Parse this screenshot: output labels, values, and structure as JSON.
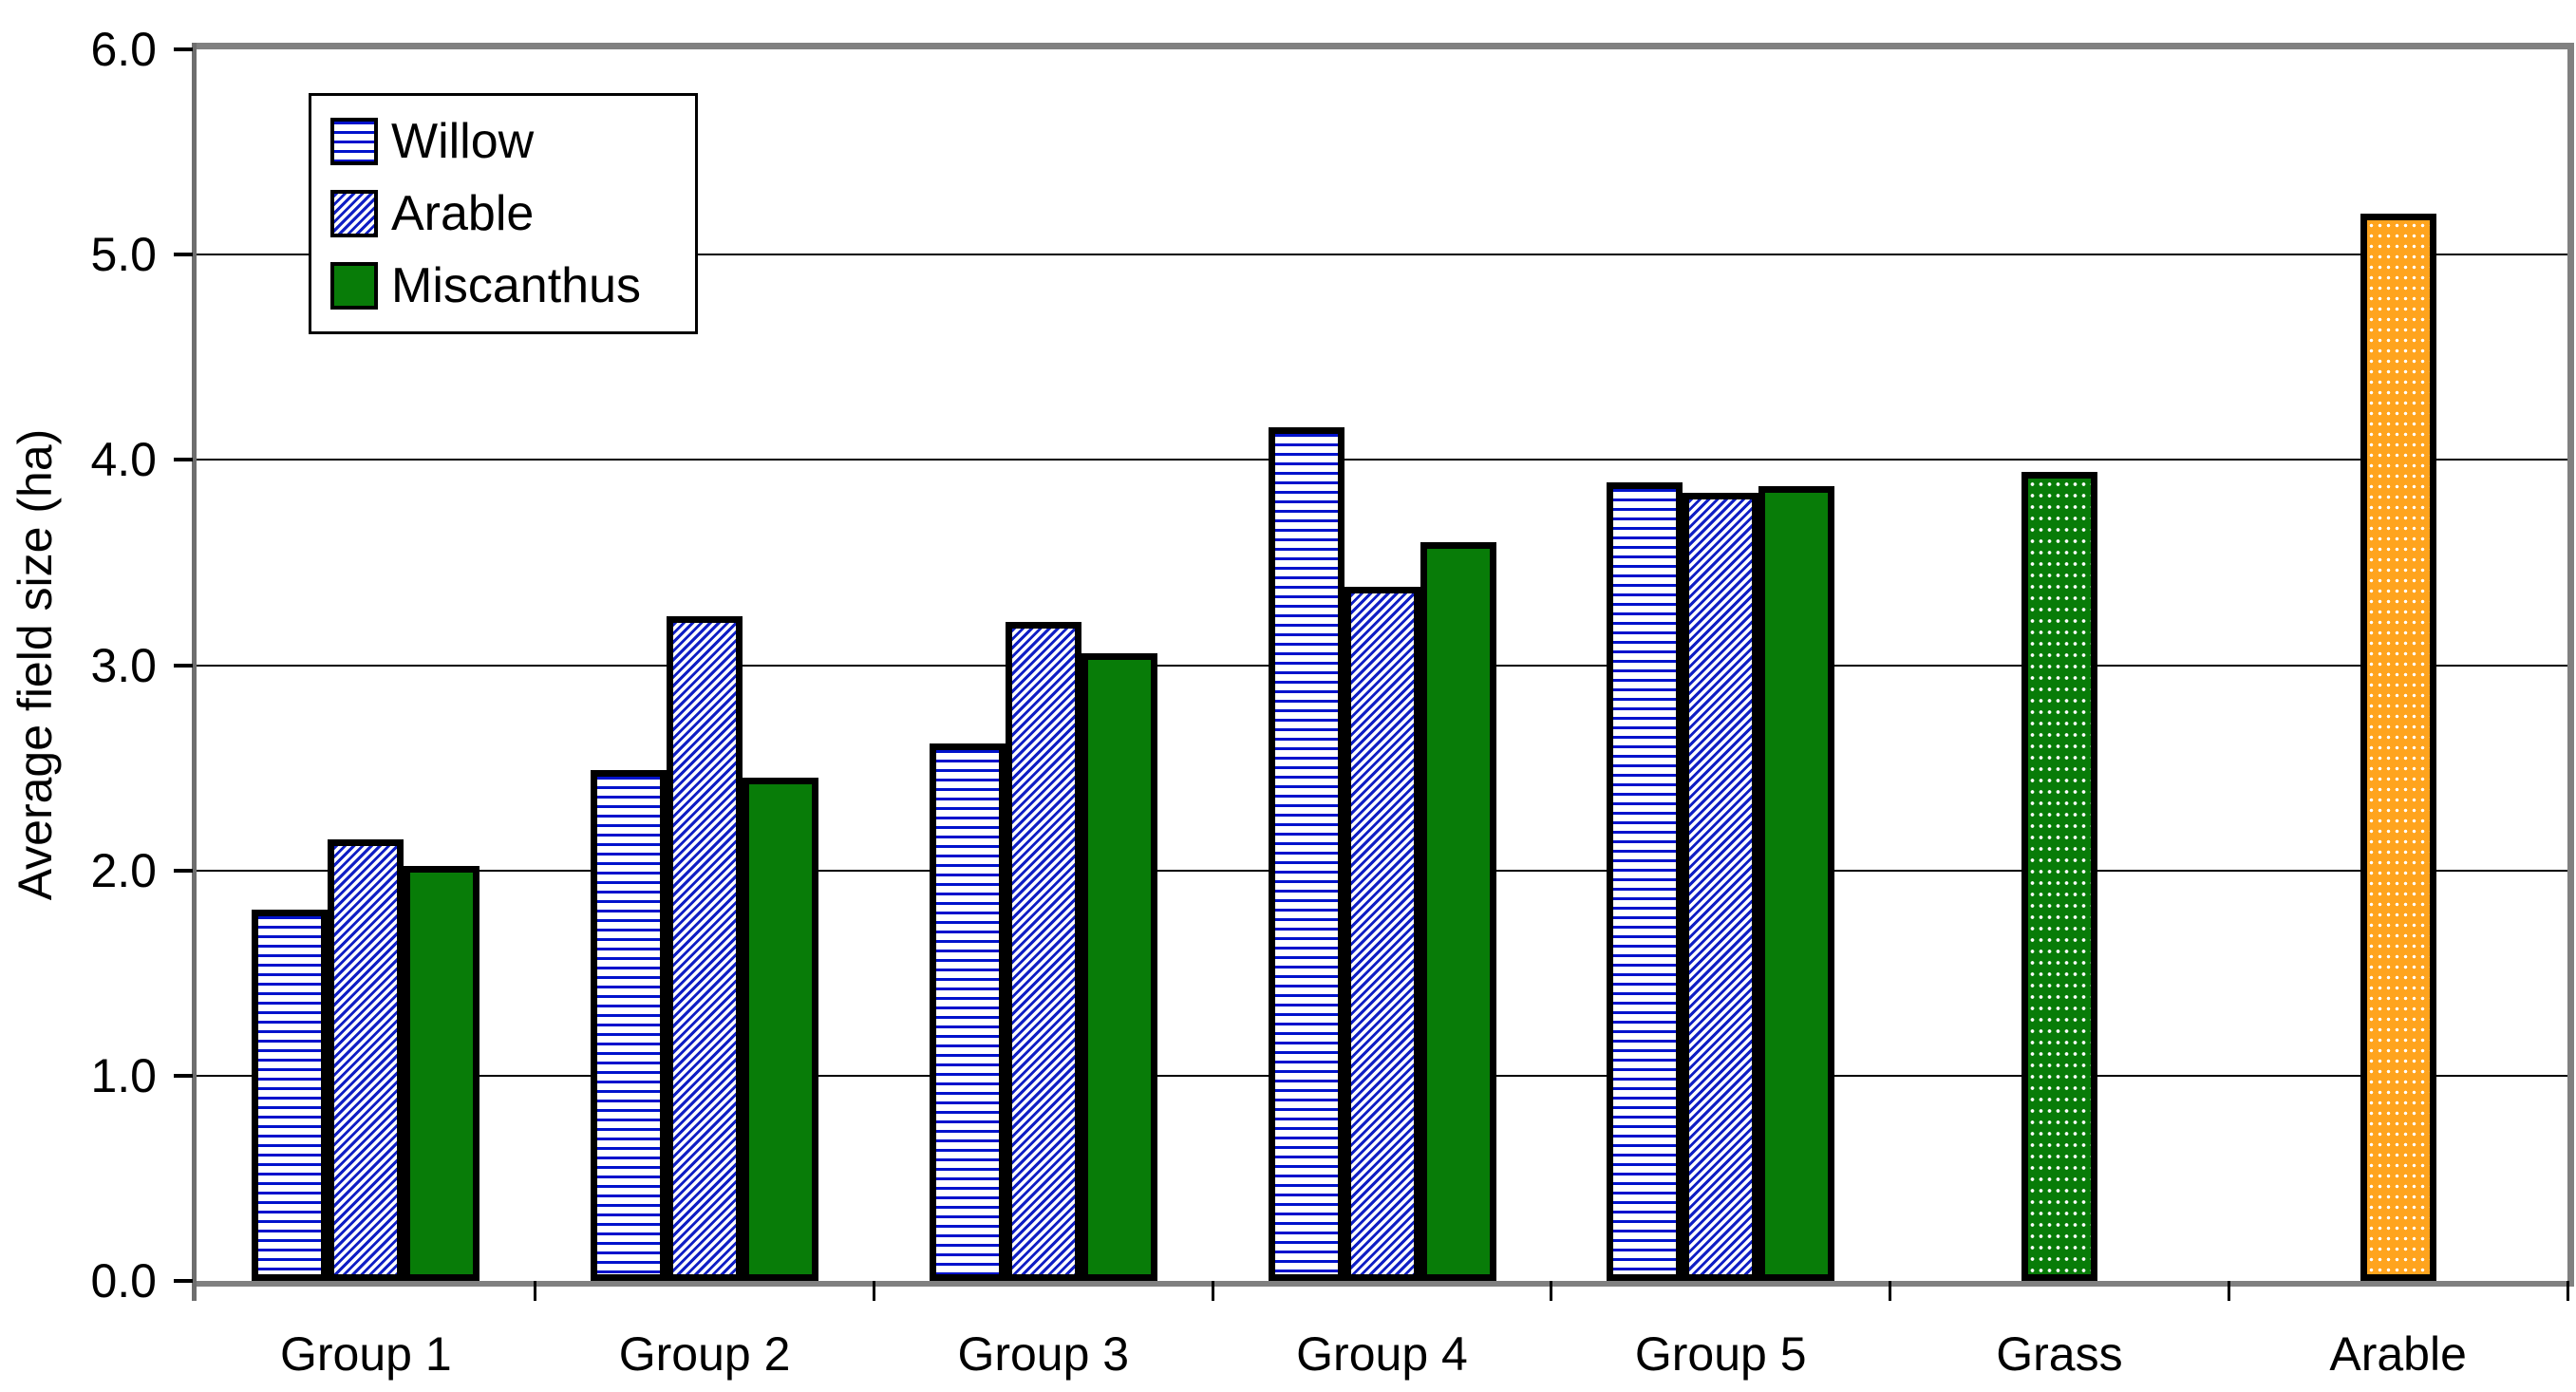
{
  "chart_data": {
    "type": "bar",
    "title": "",
    "xlabel": "",
    "ylabel": "Average field size (ha)",
    "ylim": [
      0,
      6
    ],
    "ytick_labels": [
      "0.0",
      "1.0",
      "2.0",
      "3.0",
      "4.0",
      "5.0",
      "6.0"
    ],
    "grid": "horizontal gridlines on, at every 1.0",
    "categories": [
      "Group 1",
      "Group 2",
      "Group 3",
      "Group 4",
      "Group 5",
      "Grass",
      "Arable"
    ],
    "series": [
      {
        "name": "Willow",
        "pattern": "willow",
        "values": [
          1.81,
          2.49,
          2.62,
          4.16,
          3.89,
          null,
          null
        ]
      },
      {
        "name": "Arable",
        "pattern": "arable",
        "values": [
          2.15,
          3.24,
          3.21,
          3.38,
          3.84,
          null,
          null
        ]
      },
      {
        "name": "Miscanthus",
        "pattern": "miscanthus",
        "values": [
          2.02,
          2.45,
          3.06,
          3.6,
          3.87,
          null,
          null
        ]
      }
    ],
    "single_bars": [
      {
        "category": "Grass",
        "value": 3.94,
        "pattern": "grass"
      },
      {
        "category": "Arable",
        "value": 5.2,
        "pattern": "arable-single"
      }
    ],
    "legend": {
      "position": "top-left",
      "entries": [
        "Willow",
        "Arable",
        "Miscanthus"
      ]
    },
    "colors": {
      "willow_lines_blue": "#0012cc",
      "arable_hatch_blue": "#0f1ec4",
      "miscanthus_green": "#087c08",
      "grass_green_dotted": "#087c08",
      "arable_single_orange": "#ffa41e",
      "frame_gray": "#808080",
      "gridline_black": "#000000",
      "background": "#ffffff"
    },
    "pattern_descriptions": {
      "willow": "white with horizontal blue lines",
      "arable": "white with dense blue diagonal hatch",
      "miscanthus": "solid green",
      "grass": "green with white dot grid",
      "arable-single": "orange with white dot grid"
    }
  }
}
